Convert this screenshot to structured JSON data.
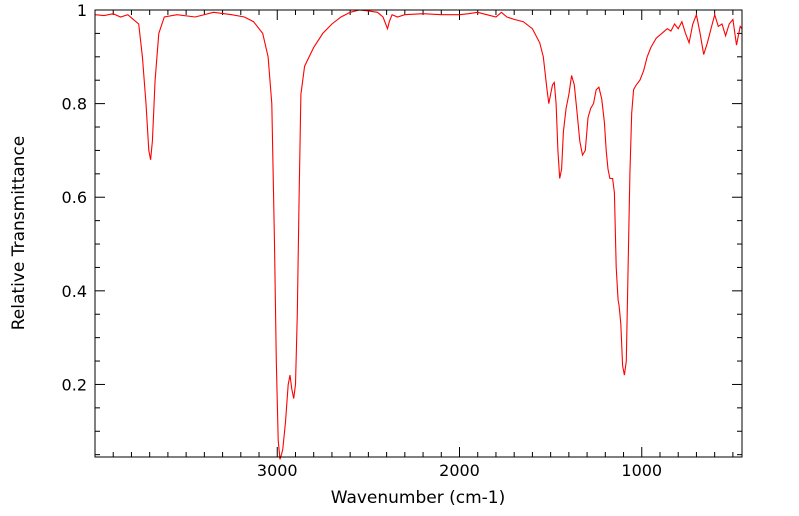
{
  "chart_data": {
    "type": "line",
    "title": "",
    "xlabel": "Wavenumber (cm-1)",
    "ylabel": "Relative Transmittance",
    "xlim": [
      4000,
      450
    ],
    "ylim": [
      0.045,
      1.0
    ],
    "x_axis_reversed": true,
    "grid": false,
    "legend": "none",
    "x_ticks": [
      {
        "value": 3000,
        "label": "3000"
      },
      {
        "value": 2000,
        "label": "2000"
      },
      {
        "value": 1000,
        "label": "1000"
      }
    ],
    "y_ticks": [
      {
        "value": 0.2,
        "label": "0.2"
      },
      {
        "value": 0.4,
        "label": "0.4"
      },
      {
        "value": 0.6,
        "label": "0.6"
      },
      {
        "value": 0.8,
        "label": "0.8"
      },
      {
        "value": 1.0,
        "label": "1"
      }
    ],
    "series": [
      {
        "name": "",
        "color": "#ff0000",
        "points": [
          [
            4000,
            0.99
          ],
          [
            3950,
            0.988
          ],
          [
            3900,
            0.992
          ],
          [
            3860,
            0.985
          ],
          [
            3820,
            0.99
          ],
          [
            3790,
            0.98
          ],
          [
            3760,
            0.97
          ],
          [
            3740,
            0.9
          ],
          [
            3720,
            0.8
          ],
          [
            3705,
            0.7
          ],
          [
            3695,
            0.68
          ],
          [
            3685,
            0.72
          ],
          [
            3670,
            0.85
          ],
          [
            3650,
            0.95
          ],
          [
            3620,
            0.985
          ],
          [
            3550,
            0.99
          ],
          [
            3450,
            0.985
          ],
          [
            3350,
            0.995
          ],
          [
            3250,
            0.99
          ],
          [
            3180,
            0.985
          ],
          [
            3130,
            0.975
          ],
          [
            3080,
            0.95
          ],
          [
            3050,
            0.9
          ],
          [
            3030,
            0.8
          ],
          [
            3015,
            0.5
          ],
          [
            3005,
            0.25
          ],
          [
            2995,
            0.08
          ],
          [
            2985,
            0.04
          ],
          [
            2970,
            0.06
          ],
          [
            2955,
            0.12
          ],
          [
            2940,
            0.2
          ],
          [
            2930,
            0.22
          ],
          [
            2920,
            0.19
          ],
          [
            2910,
            0.17
          ],
          [
            2900,
            0.2
          ],
          [
            2890,
            0.35
          ],
          [
            2880,
            0.6
          ],
          [
            2870,
            0.82
          ],
          [
            2850,
            0.88
          ],
          [
            2800,
            0.92
          ],
          [
            2750,
            0.95
          ],
          [
            2700,
            0.97
          ],
          [
            2650,
            0.985
          ],
          [
            2600,
            0.995
          ],
          [
            2550,
            1.0
          ],
          [
            2500,
            0.998
          ],
          [
            2450,
            0.995
          ],
          [
            2420,
            0.985
          ],
          [
            2395,
            0.96
          ],
          [
            2385,
            0.975
          ],
          [
            2370,
            0.99
          ],
          [
            2340,
            0.985
          ],
          [
            2300,
            0.99
          ],
          [
            2200,
            0.992
          ],
          [
            2100,
            0.99
          ],
          [
            2000,
            0.99
          ],
          [
            1950,
            0.992
          ],
          [
            1900,
            0.995
          ],
          [
            1850,
            0.99
          ],
          [
            1800,
            0.985
          ],
          [
            1770,
            0.995
          ],
          [
            1740,
            0.985
          ],
          [
            1700,
            0.98
          ],
          [
            1650,
            0.975
          ],
          [
            1600,
            0.96
          ],
          [
            1560,
            0.93
          ],
          [
            1540,
            0.9
          ],
          [
            1520,
            0.83
          ],
          [
            1510,
            0.8
          ],
          [
            1500,
            0.82
          ],
          [
            1490,
            0.84
          ],
          [
            1480,
            0.845
          ],
          [
            1470,
            0.8
          ],
          [
            1460,
            0.7
          ],
          [
            1450,
            0.64
          ],
          [
            1440,
            0.66
          ],
          [
            1430,
            0.74
          ],
          [
            1415,
            0.79
          ],
          [
            1400,
            0.82
          ],
          [
            1385,
            0.86
          ],
          [
            1370,
            0.84
          ],
          [
            1355,
            0.78
          ],
          [
            1340,
            0.72
          ],
          [
            1325,
            0.69
          ],
          [
            1310,
            0.7
          ],
          [
            1295,
            0.77
          ],
          [
            1280,
            0.79
          ],
          [
            1265,
            0.8
          ],
          [
            1250,
            0.83
          ],
          [
            1235,
            0.835
          ],
          [
            1220,
            0.81
          ],
          [
            1205,
            0.76
          ],
          [
            1195,
            0.7
          ],
          [
            1185,
            0.66
          ],
          [
            1175,
            0.64
          ],
          [
            1160,
            0.64
          ],
          [
            1150,
            0.61
          ],
          [
            1140,
            0.45
          ],
          [
            1130,
            0.38
          ],
          [
            1125,
            0.37
          ],
          [
            1115,
            0.33
          ],
          [
            1105,
            0.24
          ],
          [
            1095,
            0.22
          ],
          [
            1085,
            0.25
          ],
          [
            1075,
            0.45
          ],
          [
            1065,
            0.65
          ],
          [
            1055,
            0.78
          ],
          [
            1045,
            0.83
          ],
          [
            1030,
            0.84
          ],
          [
            1010,
            0.85
          ],
          [
            990,
            0.87
          ],
          [
            970,
            0.9
          ],
          [
            950,
            0.92
          ],
          [
            920,
            0.94
          ],
          [
            890,
            0.95
          ],
          [
            860,
            0.96
          ],
          [
            840,
            0.955
          ],
          [
            820,
            0.97
          ],
          [
            800,
            0.96
          ],
          [
            780,
            0.975
          ],
          [
            760,
            0.95
          ],
          [
            740,
            0.93
          ],
          [
            720,
            0.97
          ],
          [
            700,
            0.99
          ],
          [
            680,
            0.95
          ],
          [
            660,
            0.905
          ],
          [
            640,
            0.93
          ],
          [
            620,
            0.96
          ],
          [
            600,
            0.99
          ],
          [
            580,
            0.965
          ],
          [
            560,
            0.97
          ],
          [
            540,
            0.945
          ],
          [
            520,
            0.97
          ],
          [
            500,
            0.98
          ],
          [
            480,
            0.925
          ],
          [
            460,
            0.965
          ],
          [
            450,
            0.96
          ]
        ]
      }
    ]
  }
}
